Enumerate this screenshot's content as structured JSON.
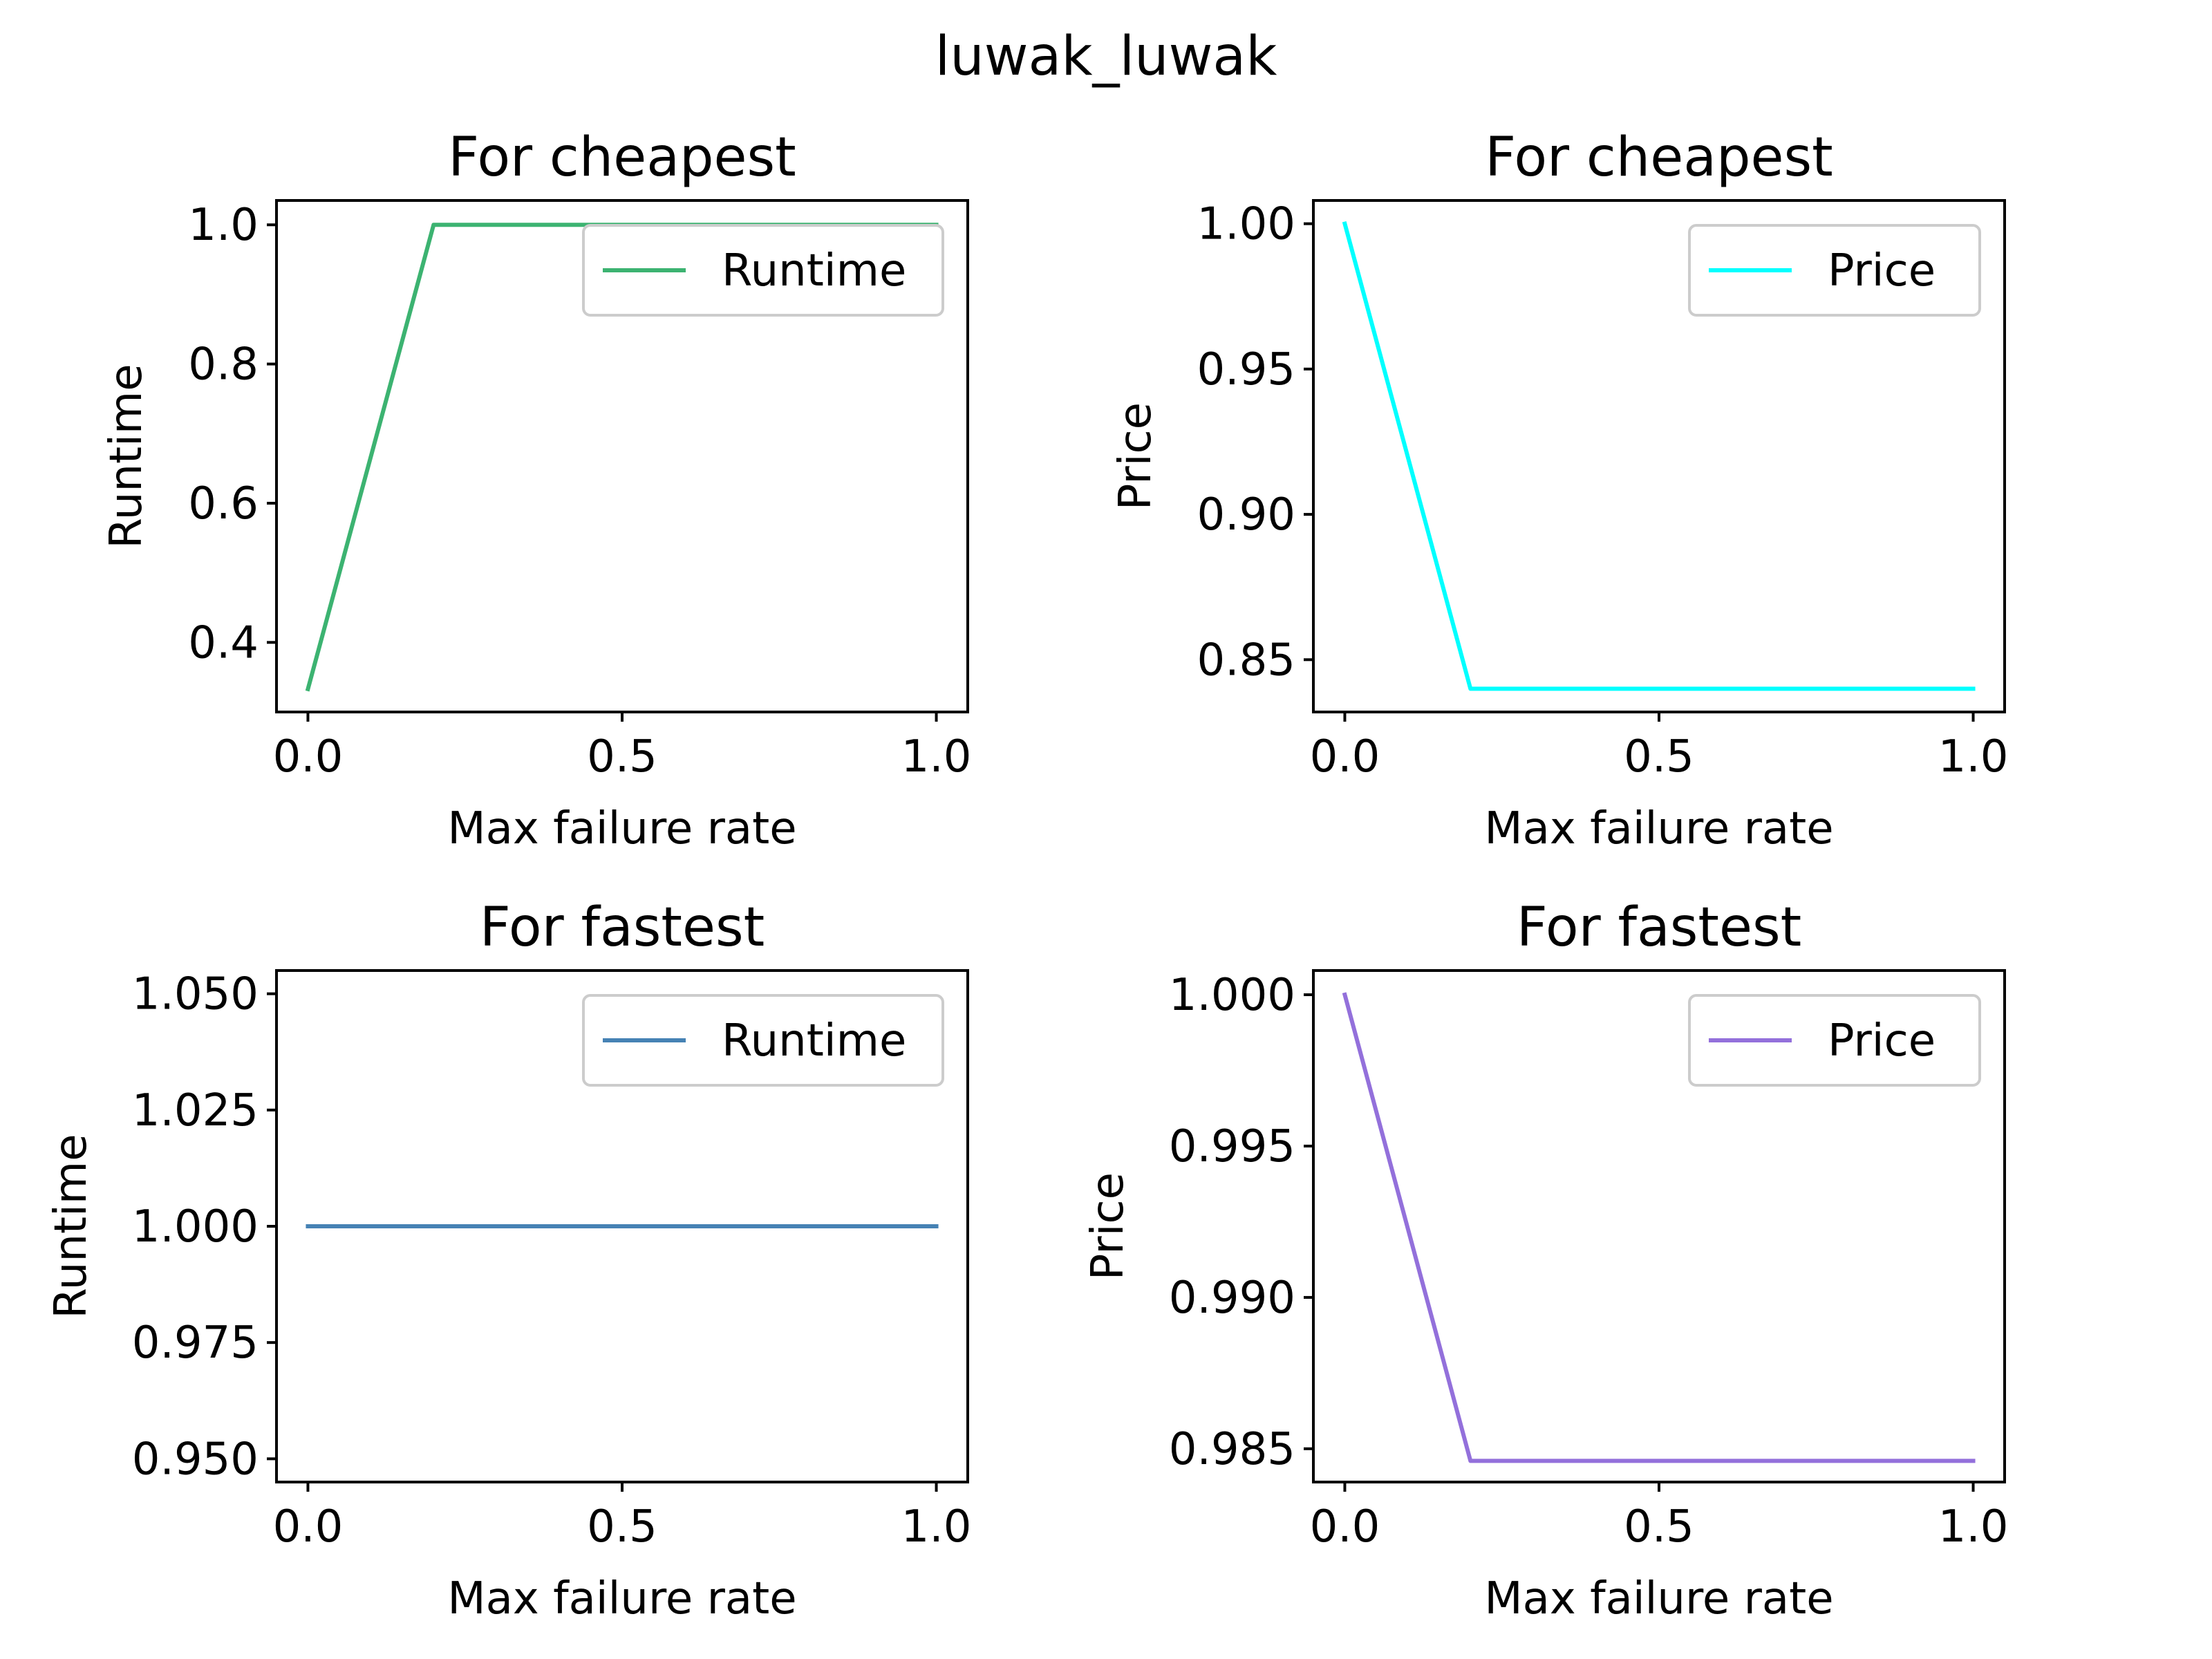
{
  "figure": {
    "suptitle": "luwak_luwak"
  },
  "chart_data": [
    {
      "type": "line",
      "title": "For cheapest",
      "xlabel": "Max failure rate",
      "ylabel": "Runtime",
      "xlim": [
        -0.05,
        1.05
      ],
      "ylim": [
        0.3,
        1.035
      ],
      "xticks": [
        0.0,
        0.5,
        1.0
      ],
      "xtick_labels": [
        "0.0",
        "0.5",
        "1.0"
      ],
      "yticks": [
        0.4,
        0.6,
        0.8,
        1.0
      ],
      "ytick_labels": [
        "0.4",
        "0.6",
        "0.8",
        "1.0"
      ],
      "grid": false,
      "legend_position": "upper-right",
      "series": [
        {
          "name": "Runtime",
          "color": "#3cb371",
          "x": [
            0.0,
            0.2,
            0.4,
            0.6,
            0.8,
            1.0
          ],
          "y": [
            0.333,
            1.0,
            1.0,
            1.0,
            1.0,
            1.0
          ]
        }
      ]
    },
    {
      "type": "line",
      "title": "For cheapest",
      "xlabel": "Max failure rate",
      "ylabel": "Price",
      "xlim": [
        -0.05,
        1.05
      ],
      "ylim": [
        0.832,
        1.008
      ],
      "xticks": [
        0.0,
        0.5,
        1.0
      ],
      "xtick_labels": [
        "0.0",
        "0.5",
        "1.0"
      ],
      "yticks": [
        0.85,
        0.9,
        0.95,
        1.0
      ],
      "ytick_labels": [
        "0.85",
        "0.90",
        "0.95",
        "1.00"
      ],
      "grid": false,
      "legend_position": "upper-right",
      "series": [
        {
          "name": "Price",
          "color": "#00ffff",
          "x": [
            0.0,
            0.2,
            0.4,
            0.6,
            0.8,
            1.0
          ],
          "y": [
            1.0,
            0.84,
            0.84,
            0.84,
            0.84,
            0.84
          ]
        }
      ]
    },
    {
      "type": "line",
      "title": "For fastest",
      "xlabel": "Max failure rate",
      "ylabel": "Runtime",
      "xlim": [
        -0.05,
        1.05
      ],
      "ylim": [
        0.945,
        1.055
      ],
      "xticks": [
        0.0,
        0.5,
        1.0
      ],
      "xtick_labels": [
        "0.0",
        "0.5",
        "1.0"
      ],
      "yticks": [
        0.95,
        0.975,
        1.0,
        1.025,
        1.05
      ],
      "ytick_labels": [
        "0.950",
        "0.975",
        "1.000",
        "1.025",
        "1.050"
      ],
      "grid": false,
      "legend_position": "upper-right",
      "series": [
        {
          "name": "Runtime",
          "color": "#4682b4",
          "x": [
            0.0,
            0.2,
            0.4,
            0.6,
            0.8,
            1.0
          ],
          "y": [
            1.0,
            1.0,
            1.0,
            1.0,
            1.0,
            1.0
          ]
        }
      ]
    },
    {
      "type": "line",
      "title": "For fastest",
      "xlabel": "Max failure rate",
      "ylabel": "Price",
      "xlim": [
        -0.05,
        1.05
      ],
      "ylim": [
        0.9839,
        1.0008
      ],
      "xticks": [
        0.0,
        0.5,
        1.0
      ],
      "xtick_labels": [
        "0.0",
        "0.5",
        "1.0"
      ],
      "yticks": [
        0.985,
        0.99,
        0.995,
        1.0
      ],
      "ytick_labels": [
        "0.985",
        "0.990",
        "0.995",
        "1.000"
      ],
      "grid": false,
      "legend_position": "upper-right",
      "series": [
        {
          "name": "Price",
          "color": "#9370db",
          "x": [
            0.0,
            0.2,
            0.4,
            0.6,
            0.8,
            1.0
          ],
          "y": [
            1.0,
            0.9846,
            0.9846,
            0.9846,
            0.9846,
            0.9846
          ]
        }
      ]
    }
  ]
}
